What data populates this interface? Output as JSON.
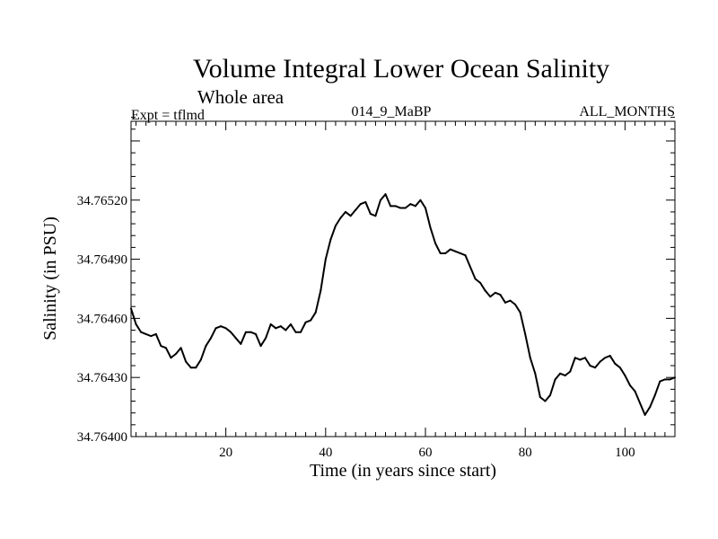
{
  "chart_data": {
    "type": "line",
    "title": "Volume Integral Lower Ocean Salinity",
    "subtitle": "Whole area",
    "expt_label": "Expt = tflmd",
    "run_label": "014_9_MaBP",
    "period_label": "ALL_MONTHS",
    "xlabel": "Time (in years since start)",
    "ylabel": "Salinity (in PSU)",
    "xlim": [
      1,
      110
    ],
    "ylim": [
      34.764,
      34.7656
    ],
    "x_ticks": [
      20,
      40,
      60,
      80,
      100
    ],
    "x_tick_labels": [
      "20",
      "40",
      "60",
      "80",
      "100"
    ],
    "y_ticks": [
      34.764,
      34.7643,
      34.7646,
      34.7649,
      34.7652
    ],
    "y_tick_labels": [
      "34.76400",
      "34.76430",
      "34.76460",
      "34.76490",
      "34.76520"
    ],
    "grid": false,
    "line_color": "#000000",
    "series": [
      {
        "name": "Salinity",
        "x": [
          1,
          2,
          3,
          4,
          5,
          6,
          7,
          8,
          9,
          10,
          11,
          12,
          13,
          14,
          15,
          16,
          17,
          18,
          19,
          20,
          21,
          22,
          23,
          24,
          25,
          26,
          27,
          28,
          29,
          30,
          31,
          32,
          33,
          34,
          35,
          36,
          37,
          38,
          39,
          40,
          41,
          42,
          43,
          44,
          45,
          46,
          47,
          48,
          49,
          50,
          51,
          52,
          53,
          54,
          55,
          56,
          57,
          58,
          59,
          60,
          61,
          62,
          63,
          64,
          65,
          66,
          67,
          68,
          69,
          70,
          71,
          72,
          73,
          74,
          75,
          76,
          77,
          78,
          79,
          80,
          81,
          82,
          83,
          84,
          85,
          86,
          87,
          88,
          89,
          90,
          91,
          92,
          93,
          94,
          95,
          96,
          97,
          98,
          99,
          100,
          101,
          102,
          103,
          104,
          105,
          106,
          107,
          108,
          109,
          110
        ],
        "values": [
          34.76465,
          34.76457,
          34.76453,
          34.76452,
          34.76451,
          34.76452,
          34.76446,
          34.76445,
          34.7644,
          34.76442,
          34.76445,
          34.76438,
          34.76435,
          34.76435,
          34.76439,
          34.76446,
          34.7645,
          34.76455,
          34.76456,
          34.76455,
          34.76453,
          34.7645,
          34.76447,
          34.76453,
          34.76453,
          34.76452,
          34.76446,
          34.7645,
          34.76457,
          34.76455,
          34.76456,
          34.76454,
          34.76457,
          34.76453,
          34.76453,
          34.76458,
          34.76459,
          34.76463,
          34.76474,
          34.7649,
          34.765,
          34.76507,
          34.76511,
          34.76514,
          34.76512,
          34.76515,
          34.76518,
          34.76519,
          34.76513,
          34.76512,
          34.7652,
          34.76523,
          34.76517,
          34.76517,
          34.76516,
          34.76516,
          34.76518,
          34.76517,
          34.7652,
          34.76516,
          34.76506,
          34.76498,
          34.76493,
          34.76493,
          34.76495,
          34.76494,
          34.76493,
          34.76492,
          34.76486,
          34.7648,
          34.76478,
          34.76474,
          34.76471,
          34.76473,
          34.76472,
          34.76468,
          34.76469,
          34.76467,
          34.76463,
          34.76452,
          34.7644,
          34.76432,
          34.7642,
          34.76418,
          34.76421,
          34.76429,
          34.76432,
          34.76431,
          34.76433,
          34.7644,
          34.76439,
          34.7644,
          34.76436,
          34.76435,
          34.76438,
          34.7644,
          34.76441,
          34.76437,
          34.76435,
          34.76431,
          34.76426,
          34.76423,
          34.76417,
          34.76411,
          34.76415,
          34.76421,
          34.76428,
          34.76429,
          34.76429,
          34.7643
        ]
      }
    ]
  }
}
